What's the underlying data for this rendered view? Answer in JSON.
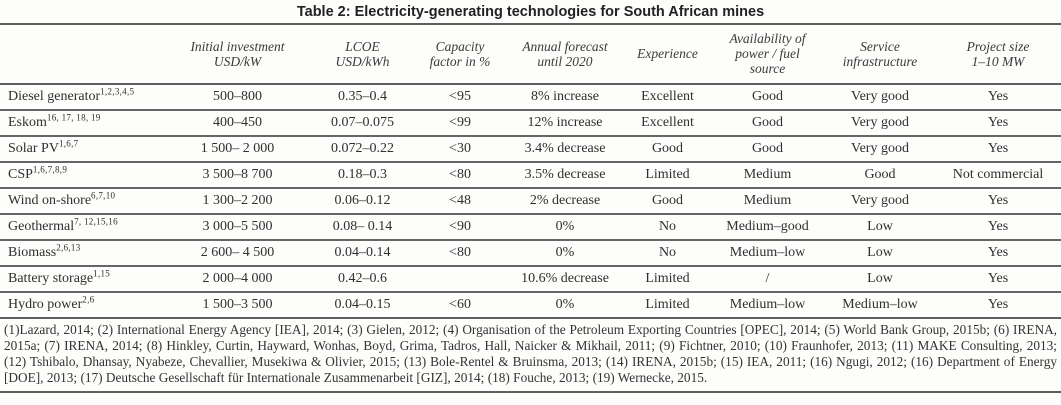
{
  "title": "Table 2: Electricity-generating technologies for South African mines",
  "table": {
    "columns": [
      {
        "lines": [
          "Initial investment",
          "USD/kW"
        ]
      },
      {
        "lines": [
          "LCOE",
          "USD/kWh"
        ]
      },
      {
        "lines": [
          "Capacity",
          "factor in %"
        ]
      },
      {
        "lines": [
          "Annual forecast",
          "until 2020"
        ]
      },
      {
        "lines": [
          "Experience"
        ]
      },
      {
        "lines": [
          "Availability of",
          "power / fuel",
          "source"
        ]
      },
      {
        "lines": [
          "Service",
          "infrastructure"
        ]
      },
      {
        "lines": [
          "Project size",
          "1–10  MW"
        ]
      }
    ],
    "rows": [
      {
        "label": "Diesel generator",
        "refs": "1,2,3,4,5",
        "cells": [
          "500–800",
          "0.35–0.4",
          "<95",
          "8% increase",
          "Excellent",
          "Good",
          "Very good",
          "Yes"
        ]
      },
      {
        "label": "Eskom",
        "refs": "16, 17, 18, 19",
        "cells": [
          "400–450",
          "0.07–0.075",
          "<99",
          "12% increase",
          "Excellent",
          "Good",
          "Very good",
          "Yes"
        ]
      },
      {
        "label": "Solar PV",
        "refs": "1,6,7",
        "cells": [
          "1 500– 2 000",
          "0.072–0.22",
          "<30",
          "3.4% decrease",
          "Good",
          "Good",
          "Very good",
          "Yes"
        ]
      },
      {
        "label": "CSP",
        "refs": "1,6,7,8,9",
        "cells": [
          "3 500–8 700",
          "0.18–0.3",
          "<80",
          "3.5% decrease",
          "Limited",
          "Medium",
          "Good",
          "Not commercial"
        ]
      },
      {
        "label": "Wind on-shore",
        "refs": "6,7,10",
        "cells": [
          "1 300–2 200",
          "0.06–0.12",
          "<48",
          "2% decrease",
          "Good",
          "Medium",
          "Very good",
          "Yes"
        ]
      },
      {
        "label": "Geothermal",
        "refs": "7, 12,15,16",
        "cells": [
          "3 000–5 500",
          "0.08– 0.14",
          "<90",
          "0%",
          "No",
          "Medium–good",
          "Low",
          "Yes"
        ]
      },
      {
        "label": "Biomass",
        "refs": "2,6,13",
        "cells": [
          "2 600– 4 500",
          "0.04–0.14",
          "<80",
          "0%",
          "No",
          "Medium–low",
          "Low",
          "Yes"
        ]
      },
      {
        "label": "Battery storage",
        "refs": "1,15",
        "cells": [
          "2 000–4 000",
          "0.42–0.6",
          "",
          "10.6% decrease",
          "Limited",
          "/",
          "Low",
          "Yes"
        ]
      },
      {
        "label": "Hydro power",
        "refs": "2,6",
        "cells": [
          "1 500–3 500",
          "0.04–0.15",
          "<60",
          "0%",
          "Limited",
          "Medium–low",
          "Medium–low",
          "Yes"
        ]
      }
    ]
  },
  "footnote": "(1)Lazard, 2014; (2) International Energy Agency [IEA], 2014; (3) Gielen, 2012; (4) Organisation of the Petroleum Exporting Countries [OPEC], 2014; (5) World Bank Group, 2015b; (6) IRENA, 2015a; (7) IRENA, 2014; (8) Hinkley, Curtin, Hayward, Wonhas, Boyd, Grima, Tadros, Hall, Naicker & Mikhail, 2011; (9) Fichtner, 2010; (10) Fraunhofer, 2013; (11) MAKE Consulting, 2013; (12) Tshibalo, Dhansay, Nyabeze, Chevallier, Musekiwa & Olivier, 2015; (13) Bole-Rentel & Bruinsma, 2013; (14) IRENA, 2015b; (15) IEA, 2011; (16) Ngugi, 2012; (16) Department of Energy [DOE], 2013; (17) Deutsche Gesellschaft für Internationale Zusammenarbeit [GIZ], 2014; (18) Fouche, 2013; (19) Wernecke, 2015."
}
